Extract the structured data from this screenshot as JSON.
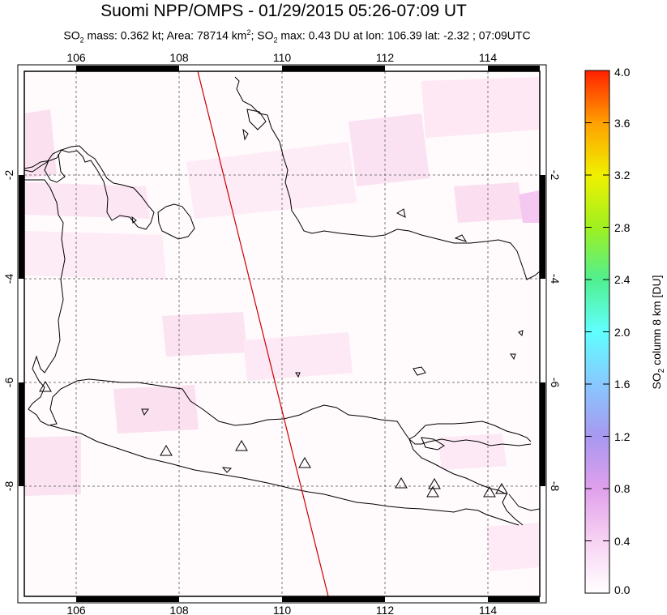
{
  "header": {
    "title": "Suomi NPP/OMPS - 01/29/2015 05:26-07:09 UT",
    "subtitle_parts": {
      "so2_label": "SO",
      "so2_sub": "2",
      "mass_text": " mass: 0.362 kt; Area: 78714 km",
      "area_sup": "2",
      "max_label": "; SO",
      "max_sub": "2",
      "max_text": " max: 0.43 DU at lon: 106.39 lat: -2.32 ; 07:09UTC"
    }
  },
  "map": {
    "lon_ticks": [
      "106",
      "108",
      "110",
      "112",
      "114"
    ],
    "lat_ticks_left": [
      "-2",
      "-4",
      "-6",
      "-8"
    ],
    "lat_ticks_right": [
      "-2",
      "-4",
      "-6",
      "-8"
    ],
    "orbit_track_color": "#cc0000",
    "volcano_marker": "triangle"
  },
  "colorbar": {
    "title_parts": {
      "a": "SO",
      "b": "2",
      "c": " column 8 km [DU]"
    },
    "tick_labels": [
      "4.0",
      "3.6",
      "3.2",
      "2.8",
      "2.4",
      "2.0",
      "1.6",
      "1.2",
      "0.8",
      "0.4",
      "0.0"
    ],
    "colors": [
      "#ffffff",
      "#f5c0f0",
      "#a8a0f0",
      "#80d0ff",
      "#40ffff",
      "#40ff80",
      "#a0ff00",
      "#ffff00",
      "#ffc000",
      "#ff6000",
      "#ff0000"
    ]
  }
}
